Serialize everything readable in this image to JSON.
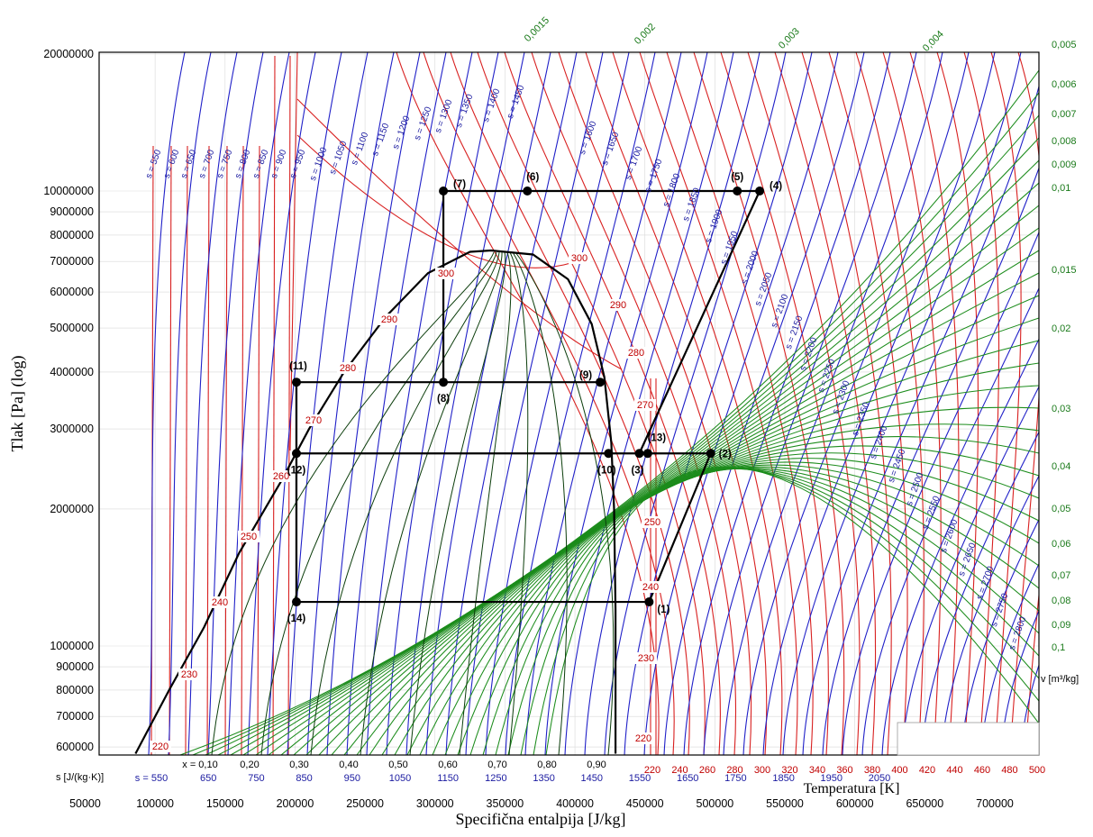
{
  "chart_data": {
    "type": "line",
    "title": "",
    "xlabel": "Specifična entalpija [J/kg]",
    "ylabel": "Tlak [Pa] (log)",
    "yscale": "log",
    "xlim": [
      50000,
      700000
    ],
    "ylim": [
      580000,
      20000000
    ],
    "x_ticks": [
      "50000",
      "100000",
      "150000",
      "200000",
      "250000",
      "300000",
      "350000",
      "400000",
      "450000",
      "500000",
      "550000",
      "600000",
      "650000",
      "700000"
    ],
    "y_ticks": [
      "20000000",
      "10000000",
      "9000000",
      "8000000",
      "7000000",
      "6000000",
      "5000000",
      "4000000",
      "3000000",
      "2000000",
      "1000000",
      "900000",
      "800000",
      "700000",
      "600000"
    ],
    "secondary_axes": {
      "quality_label": "x",
      "quality_ticks": [
        "x = 0,10",
        "0,20",
        "0,30",
        "0,40",
        "0,50",
        "0,60",
        "0,70",
        "0,80",
        "0,90"
      ],
      "entropy_label": "s [J/(kg·K)]",
      "entropy_ticks": [
        "s = 550",
        "650",
        "750",
        "850",
        "950",
        "1050",
        "1150",
        "1250",
        "1350",
        "1450",
        "1550",
        "1650",
        "1750",
        "1850",
        "1950",
        "2050"
      ],
      "temperature_label": "Temperatura [K]",
      "temperature_ticks": [
        "220",
        "240",
        "260",
        "280",
        "300",
        "320",
        "340",
        "360",
        "380",
        "400",
        "420",
        "440",
        "460",
        "480",
        "500"
      ],
      "volume_label": "v [m³/kg]",
      "volume_ticks": [
        "0,0015",
        "0,002",
        "0,003",
        "0,004",
        "0,005",
        "0,006",
        "0,007",
        "0,008",
        "0,009",
        "0,01",
        "0,015",
        "0,02",
        "0,03",
        "0,04",
        "0,05",
        "0,06",
        "0,07",
        "0,08",
        "0,09",
        "0,1"
      ]
    },
    "isotherm_labels": [
      "220",
      "230",
      "240",
      "250",
      "260",
      "270",
      "280",
      "290",
      "300"
    ],
    "isentrope_labels": [
      "s = 550",
      "s = 600",
      "s = 650",
      "s = 700",
      "s = 750",
      "s = 800",
      "s = 850",
      "s = 900",
      "s = 950",
      "s = 1000",
      "s = 1050",
      "s = 1100",
      "s = 1150",
      "s = 1200",
      "s = 1250",
      "s = 1300",
      "s = 1350",
      "s = 1400",
      "s = 1450",
      "s = 1600",
      "s = 1650",
      "s = 1700",
      "s = 1750",
      "s = 1800",
      "s = 1850",
      "s = 1900",
      "s = 1950",
      "s = 2000",
      "s = 2050",
      "s = 2100",
      "s = 2150",
      "s = 2200",
      "s = 2250",
      "s = 2300",
      "s = 2350",
      "s = 2400",
      "s = 2450",
      "s = 2500",
      "s = 2550",
      "s = 2600",
      "s = 2650",
      "s = 2700",
      "s = 2750",
      "s = 2800"
    ],
    "cycle_points": [
      {
        "label": "(1)",
        "h": 453000,
        "p": 1250000
      },
      {
        "label": "(2)",
        "h": 497000,
        "p": 2650000
      },
      {
        "label": "(3)",
        "h": 446000,
        "p": 2650000
      },
      {
        "label": "(4)",
        "h": 532000,
        "p": 10000000
      },
      {
        "label": "(5)",
        "h": 516000,
        "p": 10000000
      },
      {
        "label": "(6)",
        "h": 366000,
        "p": 10000000
      },
      {
        "label": "(7)",
        "h": 306000,
        "p": 10000000
      },
      {
        "label": "(8)",
        "h": 306000,
        "p": 3800000
      },
      {
        "label": "(9)",
        "h": 418000,
        "p": 3800000
      },
      {
        "label": "(10)",
        "h": 424000,
        "p": 2650000
      },
      {
        "label": "(11)",
        "h": 201000,
        "p": 3800000
      },
      {
        "label": "(12)",
        "h": 201000,
        "p": 2650000
      },
      {
        "label": "(13)",
        "h": 452000,
        "p": 2650000
      },
      {
        "label": "(14)",
        "h": 201000,
        "p": 1250000
      }
    ],
    "dome_liquid": [
      [
        86000,
        580000
      ],
      [
        110000,
        800000
      ],
      [
        135000,
        1100000
      ],
      [
        160000,
        1600000
      ],
      [
        190000,
        2300000
      ],
      [
        210000,
        3000000
      ],
      [
        235000,
        4000000
      ],
      [
        265000,
        5300000
      ],
      [
        295000,
        6600000
      ],
      [
        325000,
        7350000
      ],
      [
        340000,
        7400000
      ]
    ],
    "dome_vapor": [
      [
        340000,
        7400000
      ],
      [
        370000,
        7250000
      ],
      [
        395000,
        6400000
      ],
      [
        412000,
        5100000
      ],
      [
        421000,
        3900000
      ],
      [
        426000,
        2800000
      ],
      [
        428000,
        2000000
      ],
      [
        429000,
        1200000
      ],
      [
        429000,
        580000
      ]
    ]
  }
}
